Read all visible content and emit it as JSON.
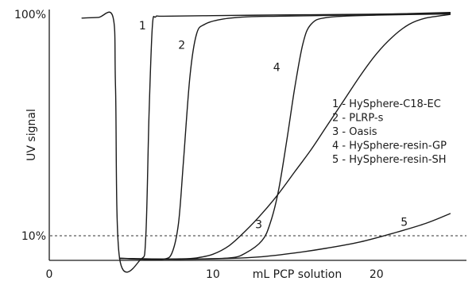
{
  "chart_data": {
    "type": "line",
    "title": "",
    "xlabel": "mL PCP solution",
    "ylabel": "UV signal",
    "x_ticks": [
      {
        "value": 0,
        "label": "0"
      },
      {
        "value": 10,
        "label": "10"
      },
      {
        "value": 20,
        "label": "20"
      }
    ],
    "y_ticks": [
      {
        "value": 10,
        "label": "10%"
      },
      {
        "value": 100,
        "label": "100%"
      }
    ],
    "xlim": [
      0,
      25.5
    ],
    "ylim": [
      0,
      102
    ],
    "reference_line": {
      "y": 10,
      "style": "dashed"
    },
    "grid": false,
    "legend_position": "right",
    "legend": [
      "1 - HySphere-C18-EC",
      "2 - PLRP-s",
      "3 - Oasis",
      "4 - HySphere-resin-GP",
      "5 - HySphere-resin-SH"
    ],
    "series": [
      {
        "name": "1",
        "x": [
          2,
          3,
          3.9,
          4.05,
          4.3,
          5.6,
          5.9,
          6.1,
          6.3,
          6.5,
          7,
          10,
          14,
          18,
          22,
          24.5
        ],
        "y": [
          98.5,
          98.8,
          98.8,
          70,
          0.8,
          0.5,
          10,
          60,
          95,
          99,
          99.3,
          99.5,
          99.8,
          100,
          100.3,
          100.6
        ]
      },
      {
        "name": "2",
        "x": [
          4.3,
          6,
          7,
          7.5,
          7.9,
          8.2,
          8.6,
          9,
          9.5,
          10.5,
          12,
          14,
          17,
          20,
          24.5
        ],
        "y": [
          0.8,
          0.4,
          0.5,
          3,
          15,
          40,
          75,
          92,
          96,
          98,
          99,
          99.3,
          99.6,
          100,
          100.8
        ]
      },
      {
        "name": "3",
        "x": [
          4.3,
          6,
          8,
          9,
          10,
          11,
          12,
          13,
          14,
          15,
          16,
          17,
          18,
          19,
          20,
          21,
          22,
          23,
          24.5
        ],
        "y": [
          0.8,
          0.5,
          0.6,
          1,
          2.5,
          6,
          12,
          19,
          27,
          36,
          45,
          55,
          65,
          75,
          84,
          91,
          96,
          98.5,
          100
        ]
      },
      {
        "name": "4",
        "x": [
          4.3,
          8,
          11,
          12,
          13,
          13.5,
          14,
          14.5,
          15,
          15.5,
          16,
          17,
          20,
          24.5
        ],
        "y": [
          0.8,
          0.5,
          1,
          3,
          8,
          15,
          28,
          48,
          70,
          88,
          96,
          98.8,
          99.7,
          100.2
        ]
      },
      {
        "name": "5",
        "x": [
          4.3,
          8,
          11,
          13,
          15,
          17,
          19,
          21,
          23,
          24.5
        ],
        "y": [
          0.8,
          0.5,
          0.8,
          1.5,
          3,
          5,
          7.5,
          11,
          15,
          19
        ]
      }
    ],
    "curve_labels": [
      {
        "text": "1",
        "x": 5.7,
        "y": 94
      },
      {
        "text": "2",
        "x": 8.1,
        "y": 86
      },
      {
        "text": "3",
        "x": 12.8,
        "y": 13
      },
      {
        "text": "4",
        "x": 13.9,
        "y": 77
      },
      {
        "text": "5",
        "x": 21.7,
        "y": 14
      }
    ]
  }
}
